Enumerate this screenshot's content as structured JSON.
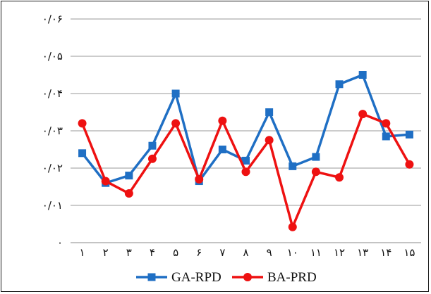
{
  "chart_data": {
    "type": "line",
    "categories": [
      "۱",
      "۲",
      "۳",
      "۴",
      "۵",
      "۶",
      "۷",
      "۸",
      "۹",
      "۱۰",
      "۱۱",
      "۱۲",
      "۱۳",
      "۱۴",
      "۱۵"
    ],
    "ylim": [
      0,
      0.06
    ],
    "yticks": [
      {
        "value": 0,
        "label": "۰"
      },
      {
        "value": 0.01,
        "label": "۰/۰۱"
      },
      {
        "value": 0.02,
        "label": "۰/۰۲"
      },
      {
        "value": 0.03,
        "label": "۰/۰۳"
      },
      {
        "value": 0.04,
        "label": "۰/۰۴"
      },
      {
        "value": 0.05,
        "label": "۰/۰۵"
      },
      {
        "value": 0.06,
        "label": "۰/۰۶"
      }
    ],
    "grid": true,
    "legend_position": "bottom",
    "series": [
      {
        "name": "GA-RPD",
        "color": "#1f6fc4",
        "marker": "square",
        "values": [
          0.024,
          0.016,
          0.018,
          0.026,
          0.04,
          0.0165,
          0.025,
          0.022,
          0.035,
          0.0205,
          0.023,
          0.0425,
          0.045,
          0.0285,
          0.029
        ]
      },
      {
        "name": "BA-PRD",
        "color": "#ee1111",
        "marker": "circle",
        "values": [
          0.032,
          0.0165,
          0.0132,
          0.0225,
          0.032,
          0.017,
          0.0327,
          0.019,
          0.0275,
          0.0042,
          0.019,
          0.0175,
          0.0345,
          0.032,
          0.021
        ]
      }
    ]
  }
}
